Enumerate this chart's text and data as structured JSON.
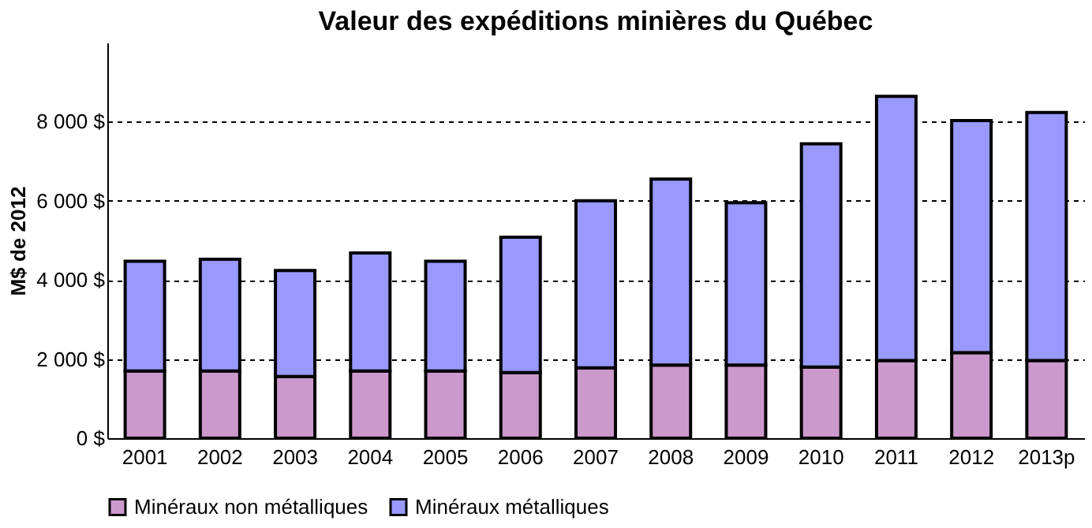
{
  "chart_data": {
    "type": "bar",
    "title": "Valeur des expéditions minières du Québec",
    "ylabel": "M$ de 2012",
    "categories": [
      "2001",
      "2002",
      "2003",
      "2004",
      "2005",
      "2006",
      "2007",
      "2008",
      "2009",
      "2010",
      "2011",
      "2012",
      "2013p"
    ],
    "stacked": true,
    "series": [
      {
        "name": "Minéraux non métalliques",
        "color": "#cc99cc",
        "values": [
          1700,
          1700,
          1560,
          1700,
          1700,
          1660,
          1780,
          1850,
          1850,
          1800,
          1960,
          2160,
          1960
        ]
      },
      {
        "name": "Minéraux métalliques",
        "color": "#9999ff",
        "values": [
          2770,
          2820,
          2680,
          2980,
          2770,
          3420,
          4220,
          4700,
          4100,
          5640,
          6680,
          5870,
          6270
        ]
      }
    ],
    "ylim": [
      0,
      10000
    ],
    "yticks": [
      {
        "value": 0,
        "label": "0 $"
      },
      {
        "value": 2000,
        "label": "2 000 $"
      },
      {
        "value": 4000,
        "label": "4 000 $"
      },
      {
        "value": 6000,
        "label": "6 000 $"
      },
      {
        "value": 8000,
        "label": "8 000 $"
      }
    ],
    "grid": "y",
    "legend": "bottom"
  }
}
